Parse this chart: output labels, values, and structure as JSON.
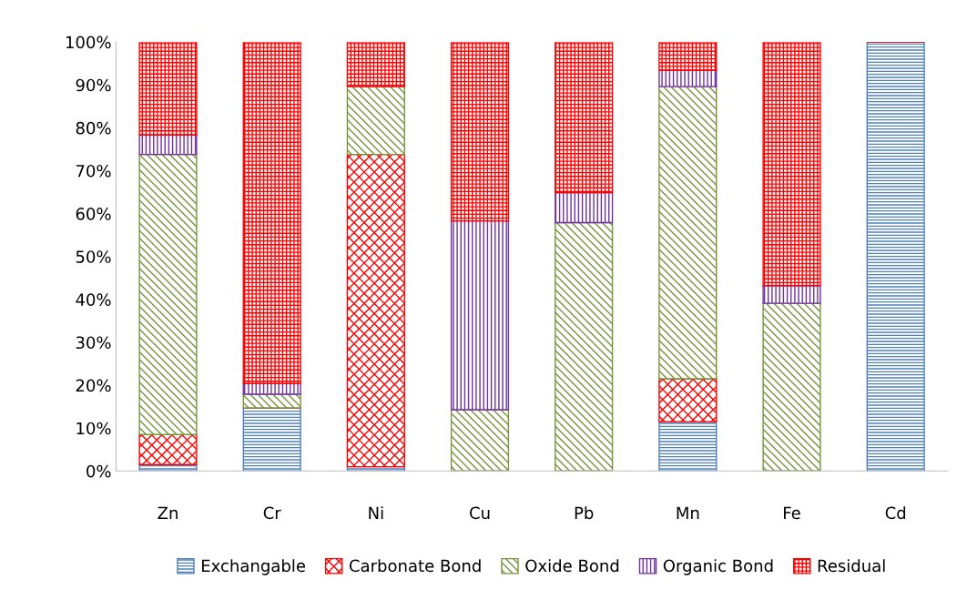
{
  "chart_data": {
    "type": "bar",
    "stacked": true,
    "categories": [
      "Zn",
      "Cr",
      "Ni",
      "Cu",
      "Pb",
      "Mn",
      "Fe",
      "Cd"
    ],
    "series": [
      {
        "name": "Exchangable",
        "color": "#4f81bd",
        "values": [
          1.5,
          14.7,
          1.0,
          0,
          0,
          11.5,
          0,
          100
        ]
      },
      {
        "name": "Carbonate Bond",
        "color": "#ff0000",
        "values": [
          7.0,
          0,
          72.8,
          0,
          0,
          10.0,
          0,
          0
        ]
      },
      {
        "name": "Oxide Bond",
        "color": "#77933c",
        "values": [
          65.3,
          3.2,
          15.8,
          14.3,
          57.9,
          68.1,
          39.1,
          0
        ]
      },
      {
        "name": "Organic Bond",
        "color": "#7030a0",
        "values": [
          4.5,
          2.5,
          0,
          44.0,
          7.0,
          3.8,
          4.1,
          0
        ]
      },
      {
        "name": "Residual",
        "color": "#ff0000",
        "values": [
          21.7,
          79.6,
          10.4,
          41.7,
          35.1,
          6.6,
          56.8,
          0
        ]
      }
    ],
    "ylim": [
      0,
      100
    ],
    "yticks": [
      {
        "value": 0,
        "label": "0%"
      },
      {
        "value": 10,
        "label": "10%"
      },
      {
        "value": 20,
        "label": "20%"
      },
      {
        "value": 30,
        "label": "30%"
      },
      {
        "value": 40,
        "label": "40%"
      },
      {
        "value": 50,
        "label": "50%"
      },
      {
        "value": 60,
        "label": "60%"
      },
      {
        "value": 70,
        "label": "70%"
      },
      {
        "value": 80,
        "label": "80%"
      },
      {
        "value": 90,
        "label": "90%"
      },
      {
        "value": 100,
        "label": "100%"
      }
    ],
    "grid": false,
    "legend": "bottom"
  }
}
